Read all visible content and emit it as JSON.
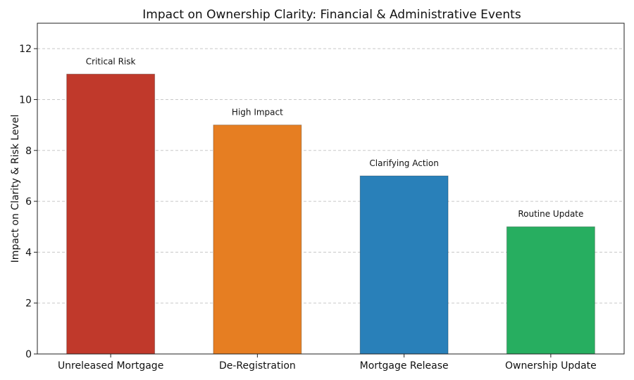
{
  "chart_data": {
    "type": "bar",
    "title": "Impact on Ownership Clarity: Financial & Administrative Events",
    "xlabel": "",
    "ylabel": "Impact on Clarity & Risk Level",
    "categories": [
      "Unreleased Mortgage",
      "De-Registration",
      "Mortgage Release",
      "Ownership Update"
    ],
    "values": [
      11,
      9,
      7,
      5
    ],
    "bar_labels": [
      "Critical Risk",
      "High Impact",
      "Clarifying Action",
      "Routine Update"
    ],
    "colors": [
      "#c0392b",
      "#e67e22",
      "#2980b9",
      "#27ae60"
    ],
    "ylim": [
      0,
      13
    ],
    "yticks": [
      0,
      2,
      4,
      6,
      8,
      10,
      12
    ],
    "grid": "y-dashed",
    "legend": "none"
  }
}
